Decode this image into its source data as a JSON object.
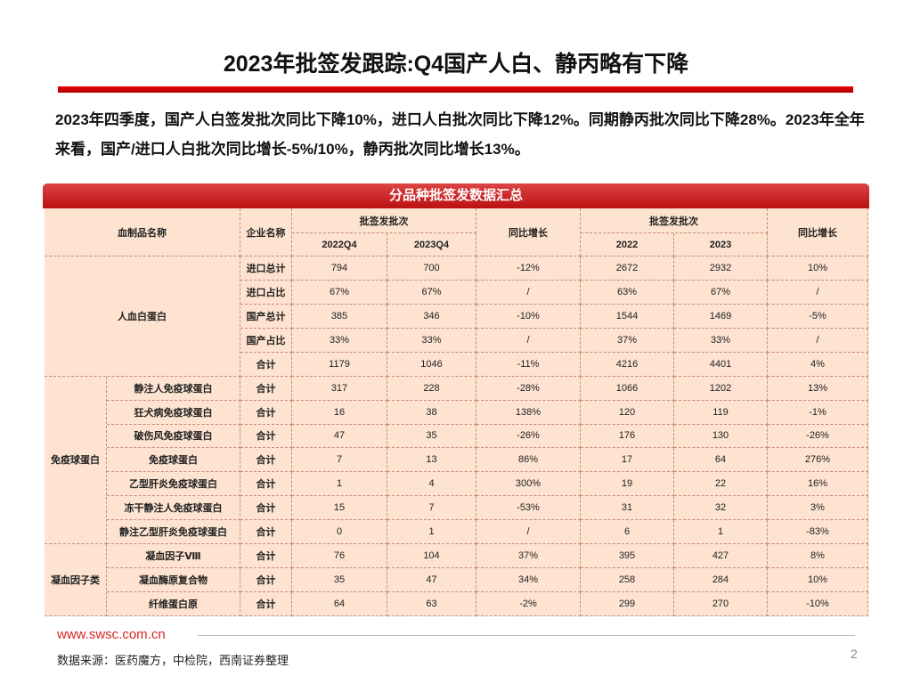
{
  "header": {
    "title": "2023年批签发跟踪:Q4国产人白、静丙略有下降"
  },
  "summary": "2023年四季度，国产人白签发批次同比下降10%，进口人白批次同比下降12%。同期静丙批次同比下降28%。2023年全年来看，国产/进口人白批次同比增长-5%/10%，静丙批次同比增长13%。",
  "table": {
    "caption": "分品种批签发数据汇总",
    "header": {
      "product": "血制品名称",
      "company": "企业名称",
      "quarter_group": "批签发批次",
      "quarter_cols": [
        "2022Q4",
        "2023Q4"
      ],
      "quarter_growth": "同比增长",
      "year_group": "批签发批次",
      "year_cols": [
        "2022",
        "2023"
      ],
      "year_growth": "同比增长"
    },
    "groups": [
      {
        "name": "人血白蛋白",
        "rows": [
          {
            "company": "进口总计",
            "cells": [
              "794",
              "700",
              "-12%",
              "2672",
              "2932",
              "10%"
            ]
          },
          {
            "company": "进口占比",
            "cells": [
              "67%",
              "67%",
              "/",
              "63%",
              "67%",
              "/"
            ]
          },
          {
            "company": "国产总计",
            "cells": [
              "385",
              "346",
              "-10%",
              "1544",
              "1469",
              "-5%"
            ]
          },
          {
            "company": "国产占比",
            "cells": [
              "33%",
              "33%",
              "/",
              "37%",
              "33%",
              "/"
            ]
          },
          {
            "company": "合计",
            "cells": [
              "1179",
              "1046",
              "-11%",
              "4216",
              "4401",
              "4%"
            ]
          }
        ]
      },
      {
        "name": "免疫球蛋白",
        "rows": [
          {
            "product": "静注人免疫球蛋白",
            "company": "合计",
            "cells": [
              "317",
              "228",
              "-28%",
              "1066",
              "1202",
              "13%"
            ]
          },
          {
            "product": "狂犬病免疫球蛋白",
            "company": "合计",
            "cells": [
              "16",
              "38",
              "138%",
              "120",
              "119",
              "-1%"
            ]
          },
          {
            "product": "破伤风免疫球蛋白",
            "company": "合计",
            "cells": [
              "47",
              "35",
              "-26%",
              "176",
              "130",
              "-26%"
            ]
          },
          {
            "product": "免疫球蛋白",
            "company": "合计",
            "cells": [
              "7",
              "13",
              "86%",
              "17",
              "64",
              "276%"
            ]
          },
          {
            "product": "乙型肝炎免疫球蛋白",
            "company": "合计",
            "cells": [
              "1",
              "4",
              "300%",
              "19",
              "22",
              "16%"
            ]
          },
          {
            "product": "冻干静注人免疫球蛋白",
            "company": "合计",
            "cells": [
              "15",
              "7",
              "-53%",
              "31",
              "32",
              "3%"
            ]
          },
          {
            "product": "静注乙型肝炎免疫球蛋白",
            "company": "合计",
            "cells": [
              "0",
              "1",
              "/",
              "6",
              "1",
              "-83%"
            ]
          }
        ]
      },
      {
        "name": "凝血因子类",
        "rows": [
          {
            "product": "凝血因子Ⅷ",
            "company": "合计",
            "cells": [
              "76",
              "104",
              "37%",
              "395",
              "427",
              "8%"
            ]
          },
          {
            "product": "凝血酶原复合物",
            "company": "合计",
            "cells": [
              "35",
              "47",
              "34%",
              "258",
              "284",
              "10%"
            ]
          },
          {
            "product": "纤维蛋白原",
            "company": "合计",
            "cells": [
              "64",
              "63",
              "-2%",
              "299",
              "270",
              "-10%"
            ]
          }
        ]
      }
    ]
  },
  "footer": {
    "website": "www.swsc.com.cn",
    "source": "数据来源：医药魔方，中检院，西南证券整理",
    "page": "2"
  }
}
